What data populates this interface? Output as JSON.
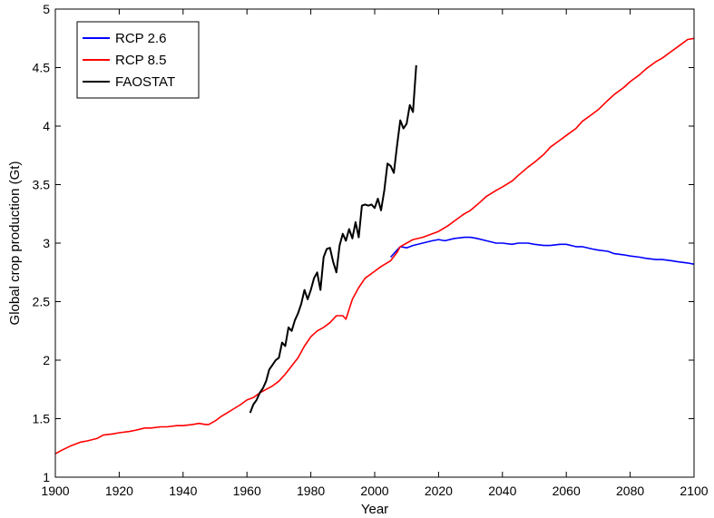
{
  "chart_data": {
    "type": "line",
    "title": "",
    "xlabel": "Year",
    "ylabel": "Global crop production (Gt)",
    "xlim": [
      1900,
      2100
    ],
    "ylim": [
      1,
      5
    ],
    "xticks": [
      1900,
      1920,
      1940,
      1960,
      1980,
      2000,
      2020,
      2040,
      2060,
      2080,
      2100
    ],
    "yticks": [
      1,
      1.5,
      2,
      2.5,
      3,
      3.5,
      4,
      4.5,
      5
    ],
    "ytick_labels": [
      "1",
      "1.5",
      "2",
      "2.5",
      "3",
      "3.5",
      "4",
      "4.5",
      "5"
    ],
    "grid": false,
    "legend_position": "top-left",
    "series": [
      {
        "name": "RCP 2.6",
        "color": "#0000ff",
        "points": [
          [
            2005,
            2.88
          ],
          [
            2007,
            2.94
          ],
          [
            2008,
            2.97
          ],
          [
            2010,
            2.96
          ],
          [
            2012,
            2.98
          ],
          [
            2015,
            3.0
          ],
          [
            2018,
            3.02
          ],
          [
            2020,
            3.03
          ],
          [
            2022,
            3.02
          ],
          [
            2025,
            3.04
          ],
          [
            2028,
            3.05
          ],
          [
            2030,
            3.05
          ],
          [
            2032,
            3.04
          ],
          [
            2035,
            3.02
          ],
          [
            2038,
            3.0
          ],
          [
            2040,
            3.0
          ],
          [
            2043,
            2.99
          ],
          [
            2045,
            3.0
          ],
          [
            2048,
            3.0
          ],
          [
            2050,
            2.99
          ],
          [
            2053,
            2.98
          ],
          [
            2055,
            2.98
          ],
          [
            2058,
            2.99
          ],
          [
            2060,
            2.99
          ],
          [
            2063,
            2.97
          ],
          [
            2065,
            2.97
          ],
          [
            2068,
            2.95
          ],
          [
            2070,
            2.94
          ],
          [
            2073,
            2.93
          ],
          [
            2075,
            2.91
          ],
          [
            2078,
            2.9
          ],
          [
            2080,
            2.89
          ],
          [
            2083,
            2.88
          ],
          [
            2085,
            2.87
          ],
          [
            2088,
            2.86
          ],
          [
            2090,
            2.86
          ],
          [
            2093,
            2.85
          ],
          [
            2095,
            2.84
          ],
          [
            2098,
            2.83
          ],
          [
            2100,
            2.82
          ]
        ]
      },
      {
        "name": "RCP 8.5",
        "color": "#ff0000",
        "points": [
          [
            1900,
            1.2
          ],
          [
            1902,
            1.23
          ],
          [
            1905,
            1.27
          ],
          [
            1908,
            1.3
          ],
          [
            1910,
            1.31
          ],
          [
            1913,
            1.33
          ],
          [
            1915,
            1.36
          ],
          [
            1918,
            1.37
          ],
          [
            1920,
            1.38
          ],
          [
            1923,
            1.39
          ],
          [
            1925,
            1.4
          ],
          [
            1928,
            1.42
          ],
          [
            1930,
            1.42
          ],
          [
            1933,
            1.43
          ],
          [
            1935,
            1.43
          ],
          [
            1938,
            1.44
          ],
          [
            1940,
            1.44
          ],
          [
            1943,
            1.45
          ],
          [
            1945,
            1.46
          ],
          [
            1947,
            1.45
          ],
          [
            1948,
            1.45
          ],
          [
            1950,
            1.48
          ],
          [
            1952,
            1.52
          ],
          [
            1955,
            1.57
          ],
          [
            1958,
            1.62
          ],
          [
            1960,
            1.66
          ],
          [
            1962,
            1.68
          ],
          [
            1964,
            1.72
          ],
          [
            1966,
            1.75
          ],
          [
            1968,
            1.78
          ],
          [
            1970,
            1.82
          ],
          [
            1972,
            1.88
          ],
          [
            1974,
            1.95
          ],
          [
            1976,
            2.02
          ],
          [
            1978,
            2.12
          ],
          [
            1980,
            2.2
          ],
          [
            1982,
            2.25
          ],
          [
            1984,
            2.28
          ],
          [
            1986,
            2.32
          ],
          [
            1988,
            2.38
          ],
          [
            1990,
            2.38
          ],
          [
            1991,
            2.35
          ],
          [
            1993,
            2.52
          ],
          [
            1995,
            2.62
          ],
          [
            1997,
            2.7
          ],
          [
            2000,
            2.76
          ],
          [
            2002,
            2.8
          ],
          [
            2005,
            2.85
          ],
          [
            2007,
            2.92
          ],
          [
            2008,
            2.97
          ],
          [
            2010,
            3.0
          ],
          [
            2012,
            3.03
          ],
          [
            2015,
            3.05
          ],
          [
            2018,
            3.08
          ],
          [
            2020,
            3.1
          ],
          [
            2023,
            3.15
          ],
          [
            2025,
            3.19
          ],
          [
            2028,
            3.25
          ],
          [
            2030,
            3.28
          ],
          [
            2033,
            3.35
          ],
          [
            2035,
            3.4
          ],
          [
            2038,
            3.45
          ],
          [
            2040,
            3.48
          ],
          [
            2043,
            3.53
          ],
          [
            2045,
            3.58
          ],
          [
            2048,
            3.65
          ],
          [
            2050,
            3.69
          ],
          [
            2053,
            3.76
          ],
          [
            2055,
            3.82
          ],
          [
            2058,
            3.88
          ],
          [
            2060,
            3.92
          ],
          [
            2063,
            3.98
          ],
          [
            2065,
            4.04
          ],
          [
            2068,
            4.1
          ],
          [
            2070,
            4.14
          ],
          [
            2073,
            4.22
          ],
          [
            2075,
            4.27
          ],
          [
            2078,
            4.33
          ],
          [
            2080,
            4.38
          ],
          [
            2083,
            4.44
          ],
          [
            2085,
            4.49
          ],
          [
            2088,
            4.55
          ],
          [
            2090,
            4.58
          ],
          [
            2093,
            4.64
          ],
          [
            2095,
            4.68
          ],
          [
            2098,
            4.74
          ],
          [
            2100,
            4.75
          ]
        ]
      },
      {
        "name": "FAOSTAT",
        "color": "#000000",
        "points": [
          [
            1961,
            1.55
          ],
          [
            1962,
            1.62
          ],
          [
            1963,
            1.66
          ],
          [
            1964,
            1.72
          ],
          [
            1965,
            1.76
          ],
          [
            1966,
            1.82
          ],
          [
            1967,
            1.92
          ],
          [
            1968,
            1.96
          ],
          [
            1969,
            2.0
          ],
          [
            1970,
            2.02
          ],
          [
            1971,
            2.15
          ],
          [
            1972,
            2.12
          ],
          [
            1973,
            2.28
          ],
          [
            1974,
            2.25
          ],
          [
            1975,
            2.34
          ],
          [
            1976,
            2.4
          ],
          [
            1977,
            2.48
          ],
          [
            1978,
            2.6
          ],
          [
            1979,
            2.52
          ],
          [
            1980,
            2.6
          ],
          [
            1981,
            2.7
          ],
          [
            1982,
            2.75
          ],
          [
            1983,
            2.6
          ],
          [
            1984,
            2.88
          ],
          [
            1985,
            2.95
          ],
          [
            1986,
            2.96
          ],
          [
            1987,
            2.84
          ],
          [
            1988,
            2.75
          ],
          [
            1989,
            2.98
          ],
          [
            1990,
            3.08
          ],
          [
            1991,
            3.02
          ],
          [
            1992,
            3.12
          ],
          [
            1993,
            3.04
          ],
          [
            1994,
            3.18
          ],
          [
            1995,
            3.05
          ],
          [
            1996,
            3.32
          ],
          [
            1997,
            3.33
          ],
          [
            1998,
            3.32
          ],
          [
            1999,
            3.33
          ],
          [
            2000,
            3.3
          ],
          [
            2001,
            3.38
          ],
          [
            2002,
            3.28
          ],
          [
            2003,
            3.45
          ],
          [
            2004,
            3.68
          ],
          [
            2005,
            3.66
          ],
          [
            2006,
            3.6
          ],
          [
            2007,
            3.83
          ],
          [
            2008,
            4.05
          ],
          [
            2009,
            3.98
          ],
          [
            2010,
            4.02
          ],
          [
            2011,
            4.18
          ],
          [
            2012,
            4.12
          ],
          [
            2013,
            4.52
          ]
        ]
      }
    ]
  }
}
